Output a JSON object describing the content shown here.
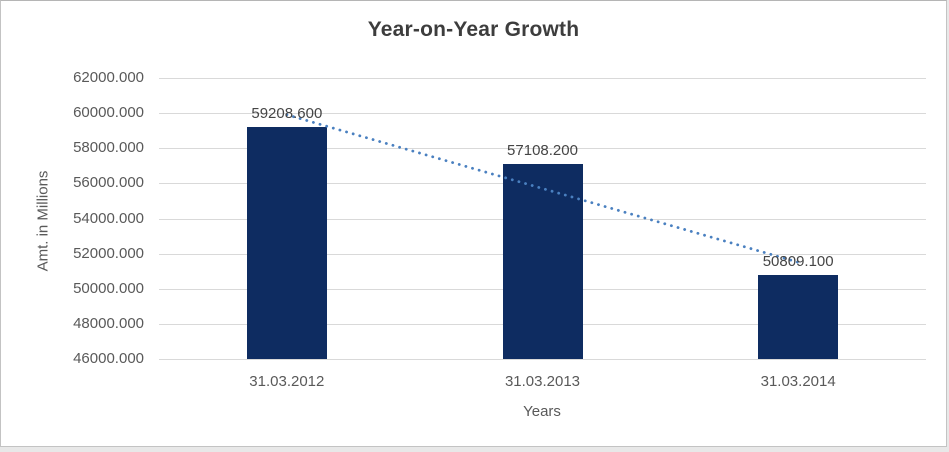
{
  "chart_data": {
    "type": "bar",
    "title": "Year-on-Year Growth",
    "xlabel": "Years",
    "ylabel": "Amt. in Millions",
    "categories": [
      "31.03.2012",
      "31.03.2013",
      "31.03.2014"
    ],
    "values": [
      59208.6,
      57108.2,
      50809.1
    ],
    "data_labels": [
      "59208.600",
      "57108.200",
      "50809.100"
    ],
    "ylim": [
      46000,
      62000
    ],
    "ytick_step": 2000,
    "ytick_labels": [
      "46000.000",
      "48000.000",
      "50000.000",
      "52000.000",
      "54000.000",
      "56000.000",
      "58000.000",
      "60000.000",
      "62000.000"
    ],
    "grid": true,
    "legend": false,
    "trendline": {
      "type": "linear",
      "style": "dotted"
    },
    "colors": {
      "bar": "#0e2c61",
      "trendline": "#4a80c0",
      "gridline": "#d9d9d9",
      "title_text": "#3d3d3d",
      "axis_text": "#595959",
      "data_label_text": "#454545",
      "frame_border": "#c3c3c3",
      "background": "#ffffff",
      "page_background": "#e8e8e8"
    }
  }
}
